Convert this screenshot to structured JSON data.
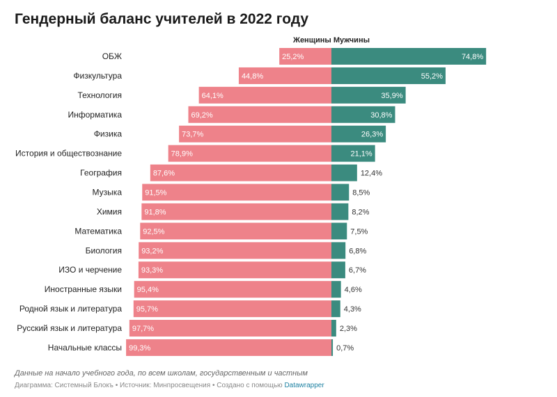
{
  "title": "Гендерный баланс учителей в 2022 году",
  "legend": {
    "women": "Женщины",
    "men": "Мужчины"
  },
  "colors": {
    "women": "#ee828a",
    "men": "#3b8b7f"
  },
  "note": "Данные на начало учебного года, по всем школам, государственным и частным",
  "credit": {
    "text": "Диаграмма: Системный Блокъ • Источник: Минпросвещения • Создано с помощью",
    "link": "Datawrapper"
  },
  "chart_data": {
    "type": "bar",
    "orientation": "horizontal-diverging",
    "title": "Гендерный баланс учителей в 2022 году",
    "categories": [
      "ОБЖ",
      "Физкультура",
      "Технология",
      "Информатика",
      "Физика",
      "История и обществознание",
      "География",
      "Музыка",
      "Химия",
      "Математика",
      "Биология",
      "ИЗО и черчение",
      "Иностранные языки",
      "Родной язык и литература",
      "Русский язык и литература",
      "Начальные классы"
    ],
    "series": [
      {
        "name": "Женщины",
        "values": [
          25.2,
          44.8,
          64.1,
          69.2,
          73.7,
          78.9,
          87.6,
          91.5,
          91.8,
          92.5,
          93.2,
          93.3,
          95.4,
          95.7,
          97.7,
          99.3
        ]
      },
      {
        "name": "Мужчины",
        "values": [
          74.8,
          55.2,
          35.9,
          30.8,
          26.3,
          21.1,
          12.4,
          8.5,
          8.2,
          7.5,
          6.8,
          6.7,
          4.6,
          4.3,
          2.3,
          0.7
        ]
      }
    ],
    "unit": "%",
    "legend": "top"
  }
}
